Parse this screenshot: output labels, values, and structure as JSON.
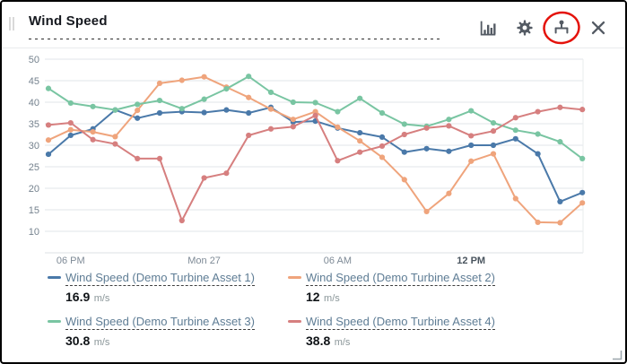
{
  "header": {
    "title": "Wind Speed",
    "icons": [
      "bar-chart",
      "settings-gear",
      "asset-hierarchy",
      "close"
    ],
    "annotation": "red-circle-highlight-on-asset-hierarchy"
  },
  "chart_data": {
    "type": "line",
    "title": "Wind Speed",
    "unit": "m/s",
    "grid": true,
    "legend_position": "bottom",
    "x_axis": {
      "tick_labels": [
        {
          "label": "06 PM",
          "index": 1,
          "bold": false
        },
        {
          "label": "Mon 27",
          "index": 7,
          "bold": false
        },
        {
          "label": "06 AM",
          "index": 13,
          "bold": false
        },
        {
          "label": "12 PM",
          "index": 19,
          "bold": true
        }
      ]
    },
    "y_axis": {
      "ticks": [
        50,
        45,
        40,
        35,
        30,
        25,
        20,
        15,
        10
      ],
      "range": [
        5,
        52.5
      ],
      "bottom_line_value": 5
    },
    "series": [
      {
        "name": "Wind Speed (Demo Turbine Asset 1)",
        "color": "#4a79a9",
        "values": [
          27.9,
          32.3,
          33.8,
          38.2,
          36.3,
          37.5,
          37.8,
          37.6,
          38.2,
          37.5,
          38.8,
          35.4,
          35.6,
          34.0,
          32.9,
          31.9,
          28.4,
          29.2,
          28.6,
          30.0,
          30.0,
          31.5,
          28.0,
          16.9,
          19.0
        ]
      },
      {
        "name": "Wind Speed (Demo Turbine Asset 2)",
        "color": "#efa47c",
        "values": [
          31.2,
          33.6,
          33.1,
          32.0,
          38.1,
          44.4,
          45.1,
          45.9,
          43.5,
          41.1,
          38.4,
          36.0,
          37.8,
          34.2,
          31.0,
          27.2,
          22.0,
          14.6,
          18.8,
          26.3,
          28.0,
          17.6,
          12.1,
          12.0,
          16.6
        ]
      },
      {
        "name": "Wind Speed (Demo Turbine Asset 3)",
        "color": "#79c5a2",
        "values": [
          43.2,
          39.8,
          39.0,
          38.2,
          39.5,
          40.4,
          38.5,
          40.7,
          43.1,
          46.0,
          42.3,
          40.0,
          39.9,
          37.8,
          40.9,
          37.5,
          34.9,
          34.4,
          36.0,
          38.0,
          35.2,
          33.5,
          32.6,
          30.8,
          26.9
        ]
      },
      {
        "name": "Wind Speed (Demo Turbine Asset 4)",
        "color": "#d67f7f",
        "values": [
          34.7,
          35.2,
          31.3,
          30.3,
          26.9,
          26.9,
          12.5,
          22.4,
          23.5,
          32.3,
          33.8,
          34.3,
          36.9,
          26.4,
          28.4,
          29.8,
          32.5,
          34.0,
          34.5,
          32.2,
          33.3,
          36.4,
          37.8,
          38.8,
          38.3
        ]
      }
    ]
  },
  "legend": {
    "items": [
      {
        "label": "Wind Speed (Demo Turbine Asset 1)",
        "value": "16.9",
        "unit": "m/s",
        "color": "#4a79a9"
      },
      {
        "label": "Wind Speed (Demo Turbine Asset 2)",
        "value": "12",
        "unit": "m/s",
        "color": "#efa47c"
      },
      {
        "label": "Wind Speed (Demo Turbine Asset 3)",
        "value": "30.8",
        "unit": "m/s",
        "color": "#79c5a2"
      },
      {
        "label": "Wind Speed (Demo Turbine Asset 4)",
        "value": "38.8",
        "unit": "m/s",
        "color": "#d67f7f"
      }
    ]
  }
}
